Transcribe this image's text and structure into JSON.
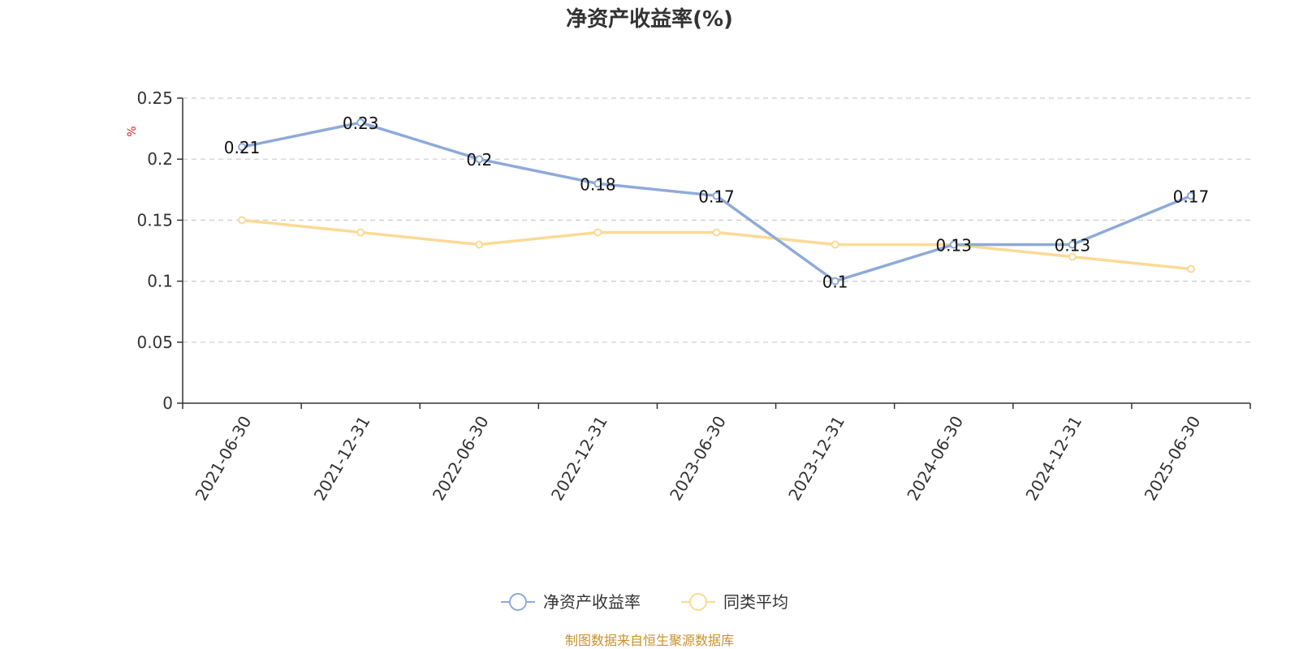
{
  "chart_data": {
    "type": "line",
    "title": "净资产收益率(%)",
    "ylabel": "%",
    "xlabel": "",
    "categories": [
      "2021-06-30",
      "2021-12-31",
      "2022-06-30",
      "2022-12-31",
      "2023-06-30",
      "2023-12-31",
      "2024-06-30",
      "2024-12-31",
      "2025-06-30"
    ],
    "ylim": [
      0,
      0.25
    ],
    "yticks": [
      "0",
      "0.05",
      "0.1",
      "0.15",
      "0.2",
      "0.25"
    ],
    "grid": true,
    "legend_position": "bottom-center",
    "series": [
      {
        "name": "净资产收益率",
        "values": [
          0.21,
          0.23,
          0.2,
          0.18,
          0.17,
          0.1,
          0.13,
          0.13,
          0.17
        ],
        "labels": [
          "0.21",
          "0.23",
          "0.2",
          "0.18",
          "0.17",
          "0.1",
          "0.13",
          "0.13",
          "0.17"
        ],
        "color": "#8eaad8"
      },
      {
        "name": "同类平均",
        "values": [
          0.15,
          0.14,
          0.13,
          0.14,
          0.14,
          0.13,
          0.13,
          0.12,
          0.11
        ],
        "color": "#fcd995"
      }
    ]
  },
  "footer": {
    "source": "制图数据来自恒生聚源数据库"
  },
  "colors": {
    "unit_label": "#e01f1f",
    "source_text": "#c8902e",
    "axis": "#333333",
    "grid": "#cccccc"
  }
}
